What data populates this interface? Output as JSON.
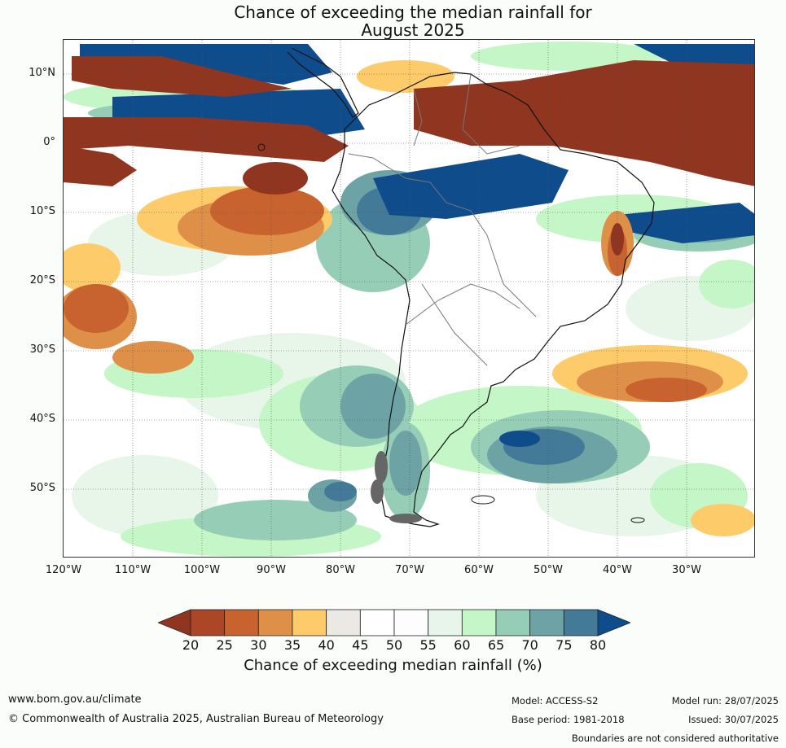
{
  "title_line1": "Chance of exceeding the median rainfall for",
  "title_line2": "August 2025",
  "lat_labels": [
    "10°N",
    "0°",
    "10°S",
    "20°S",
    "30°S",
    "40°S",
    "50°S"
  ],
  "lon_labels": [
    "120°W",
    "110°W",
    "100°W",
    "90°W",
    "80°W",
    "70°W",
    "60°W",
    "50°W",
    "40°W",
    "30°W"
  ],
  "colorbar": {
    "ticks": [
      "20",
      "25",
      "30",
      "35",
      "40",
      "45",
      "50",
      "55",
      "60",
      "65",
      "70",
      "75",
      "80"
    ],
    "colors": [
      "#8f3520",
      "#ab4727",
      "#c8632f",
      "#df9048",
      "#fdcb6a",
      "#ece8e4",
      "#ffffff",
      "#fcfdfc",
      "#e8f5e9",
      "#c5f6c7",
      "#96cdb6",
      "#6ea3a6",
      "#427a98",
      "#0f4c8c"
    ],
    "label": "Chance of exceeding median rainfall (%)"
  },
  "footer": {
    "url": "www.bom.gov.au/climate",
    "copyright": "© Commonwealth of Australia 2025, Australian Bureau of Meteorology",
    "model": "Model: ACCESS-S2",
    "model_run": "Model run: 28/07/2025",
    "base_period": "Base period: 1981-2018",
    "issued": "Issued: 30/07/2025",
    "disclaimer": "Boundaries are not considered authoritative"
  }
}
